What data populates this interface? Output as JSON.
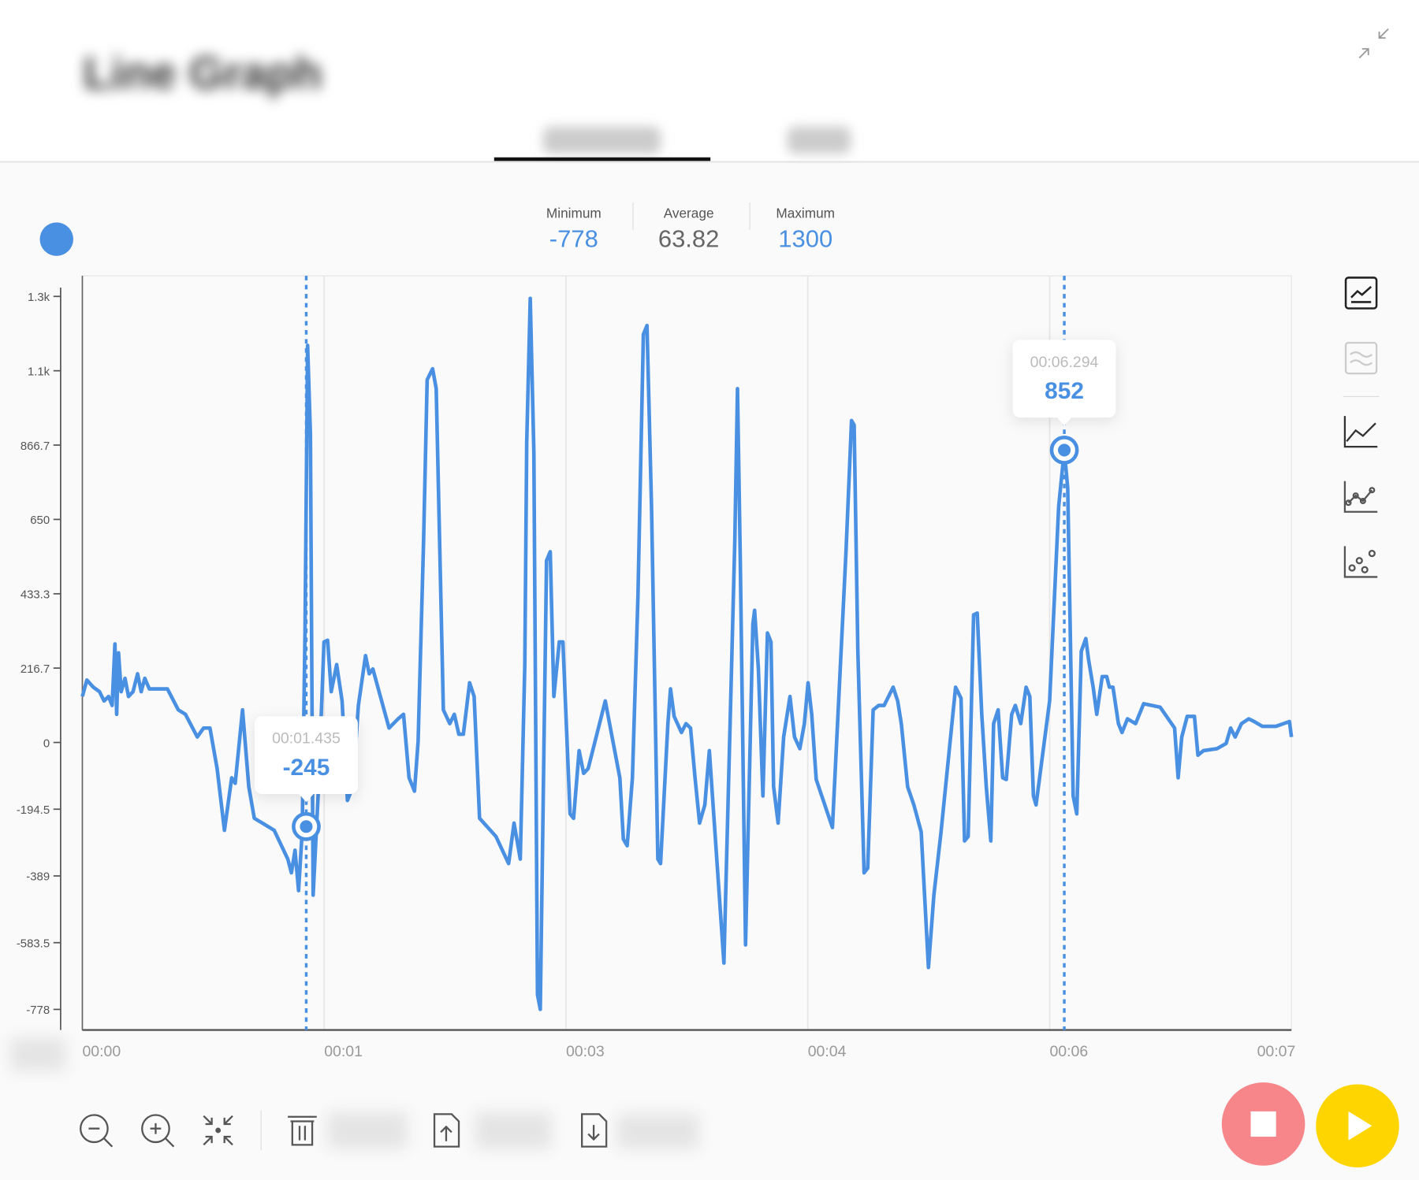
{
  "header": {
    "title": "Line Graph",
    "collapse_icon": "collapse-arrows-icon"
  },
  "legend": {
    "series_color": "#4a90e2"
  },
  "stats": [
    {
      "label": "Minimum",
      "value": "-778",
      "color": "#4a90e2"
    },
    {
      "label": "Average",
      "value": "63.82",
      "color": "#666666"
    },
    {
      "label": "Maximum",
      "value": "1300",
      "color": "#4a90e2"
    }
  ],
  "tooltips": [
    {
      "time": "00:01.435",
      "value": "-245",
      "t": 1.435,
      "v": -245
    },
    {
      "time": "00:06.294",
      "value": "852",
      "t": 6.294,
      "v": 852
    }
  ],
  "side_toolbar": [
    "line-chart-box-icon",
    "area-wave-chart-icon",
    "line-chart-icon",
    "line-points-chart-icon",
    "scatter-chart-icon"
  ],
  "bottom_toolbar": [
    "zoom-out-icon",
    "zoom-in-icon",
    "fit-view-icon",
    "trash-icon",
    "upload-file-icon",
    "download-file-icon"
  ],
  "controls": {
    "stop_color": "#f7868b",
    "play_color": "#ffd500"
  },
  "chart_data": {
    "type": "line",
    "xlim": [
      0,
      7.75
    ],
    "ylim": [
      -838,
      1360
    ],
    "x_ticks": [
      0,
      1.55,
      3.1,
      4.65,
      6.2,
      7.75
    ],
    "x_tick_labels": [
      "00:00",
      "00:01",
      "00:03",
      "00:04",
      "00:06",
      "00:07"
    ],
    "y_ticks": [
      1300,
      1083.3,
      866.7,
      650,
      433.3,
      216.7,
      0,
      -194.5,
      -389,
      -583.5,
      -778
    ],
    "y_tick_labels": [
      "1.3k",
      "1.1k",
      "866.7",
      "650",
      "433.3",
      "216.7",
      "0",
      "-194.5",
      "-389",
      "-583.5",
      "-778"
    ],
    "grid": "vertical",
    "color": "#4a90e2",
    "t": [
      0,
      0.029,
      0.07,
      0.11,
      0.139,
      0.168,
      0.191,
      0.209,
      0.22,
      0.232,
      0.249,
      0.273,
      0.296,
      0.325,
      0.354,
      0.377,
      0.4,
      0.429,
      0.545,
      0.615,
      0.661,
      0.737,
      0.777,
      0.818,
      0.864,
      0.911,
      0.957,
      0.98,
      1.027,
      1.067,
      1.102,
      1.154,
      1.23,
      1.317,
      1.34,
      1.363,
      1.386,
      1.409,
      1.427,
      1.444,
      1.462,
      1.479,
      1.514,
      1.549,
      1.572,
      1.595,
      1.63,
      1.665,
      1.699,
      1.734,
      1.769,
      1.815,
      1.839,
      1.862,
      1.966,
      2.024,
      2.059,
      2.094,
      2.129,
      2.152,
      2.187,
      2.21,
      2.245,
      2.268,
      2.314,
      2.355,
      2.384,
      2.413,
      2.442,
      2.482,
      2.511,
      2.546,
      2.651,
      2.732,
      2.767,
      2.807,
      2.836,
      2.848,
      2.871,
      2.894,
      2.917,
      2.935,
      2.975,
      2.999,
      3.022,
      3.057,
      3.08,
      3.126,
      3.149,
      3.184,
      3.213,
      3.242,
      3.352,
      3.445,
      3.468,
      3.492,
      3.526,
      3.561,
      3.596,
      3.619,
      3.648,
      3.689,
      3.706,
      3.753,
      3.77,
      3.793,
      3.84,
      3.869,
      3.898,
      3.927,
      3.956,
      3.99,
      4.019,
      4.112,
      4.182,
      4.199,
      4.217,
      4.251,
      4.298,
      4.309,
      4.333,
      4.362,
      4.391,
      4.414,
      4.431,
      4.46,
      4.495,
      4.536,
      4.565,
      4.599,
      4.628,
      4.652,
      4.675,
      4.704,
      4.808,
      4.895,
      4.93,
      4.947,
      4.971,
      5.011,
      5.034,
      5.069,
      5.104,
      5.139,
      5.197,
      5.226,
      5.249,
      5.29,
      5.33,
      5.377,
      5.423,
      5.458,
      5.504,
      5.597,
      5.632,
      5.655,
      5.678,
      5.713,
      5.736,
      5.765,
      5.794,
      5.823,
      5.841,
      5.87,
      5.899,
      5.922,
      5.957,
      5.98,
      6.015,
      6.049,
      6.073,
      6.096,
      6.113,
      6.2,
      6.258,
      6.294,
      6.316,
      6.351,
      6.374,
      6.403,
      6.432,
      6.45,
      6.479,
      6.502,
      6.537,
      6.566,
      6.583,
      6.606,
      6.641,
      6.664,
      6.699,
      6.751,
      6.803,
      6.908,
      7.001,
      7.024,
      7.047,
      7.082,
      7.128,
      7.151,
      7.186,
      7.273,
      7.331,
      7.36,
      7.389,
      7.43,
      7.476,
      7.511,
      7.563,
      7.65,
      7.737,
      7.75
    ],
    "v": [
      134,
      182,
      161,
      148,
      121,
      134,
      108,
      287,
      82,
      261,
      148,
      187,
      134,
      148,
      200,
      148,
      187,
      156,
      156,
      95,
      82,
      16,
      42,
      42,
      -76,
      -256,
      -103,
      -119,
      95,
      -129,
      -221,
      -235,
      -256,
      -340,
      -380,
      -314,
      -432,
      -261,
      319,
      1157,
      899,
      -445,
      -129,
      293,
      298,
      148,
      227,
      121,
      -169,
      -129,
      108,
      253,
      200,
      214,
      42,
      69,
      82,
      -103,
      -142,
      3,
      583,
      1057,
      1089,
      1031,
      95,
      55,
      82,
      24,
      24,
      174,
      134,
      -221,
      -274,
      -353,
      -235,
      -340,
      227,
      873,
      1294,
      846,
      -735,
      -778,
      530,
      556,
      134,
      293,
      293,
      -208,
      -221,
      -24,
      -90,
      -76,
      121,
      -103,
      -282,
      -301,
      -103,
      424,
      1189,
      1215,
      688,
      -340,
      -353,
      55,
      156,
      76,
      29,
      55,
      42,
      -103,
      -235,
      -182,
      -24,
      -643,
      583,
      1031,
      530,
      -590,
      345,
      385,
      214,
      -156,
      319,
      293,
      -129,
      -235,
      16,
      134,
      16,
      -18,
      55,
      174,
      82,
      -108,
      -248,
      556,
      938,
      925,
      266,
      -380,
      -366,
      95,
      108,
      108,
      161,
      121,
      55,
      -129,
      -182,
      -261,
      -656,
      -445,
      -261,
      161,
      129,
      -287,
      -274,
      372,
      377,
      82,
      -129,
      -287,
      55,
      95,
      -103,
      -108,
      82,
      108,
      55,
      161,
      134,
      -156,
      -182,
      121,
      688,
      852,
      741,
      -156,
      -208,
      266,
      303,
      240,
      161,
      82,
      192,
      192,
      161,
      161,
      55,
      29,
      69,
      55,
      113,
      103,
      42,
      -103,
      16,
      76,
      76,
      -37,
      -24,
      -18,
      -3,
      42,
      16,
      55,
      69,
      61,
      47,
      47,
      61,
      16
    ]
  }
}
